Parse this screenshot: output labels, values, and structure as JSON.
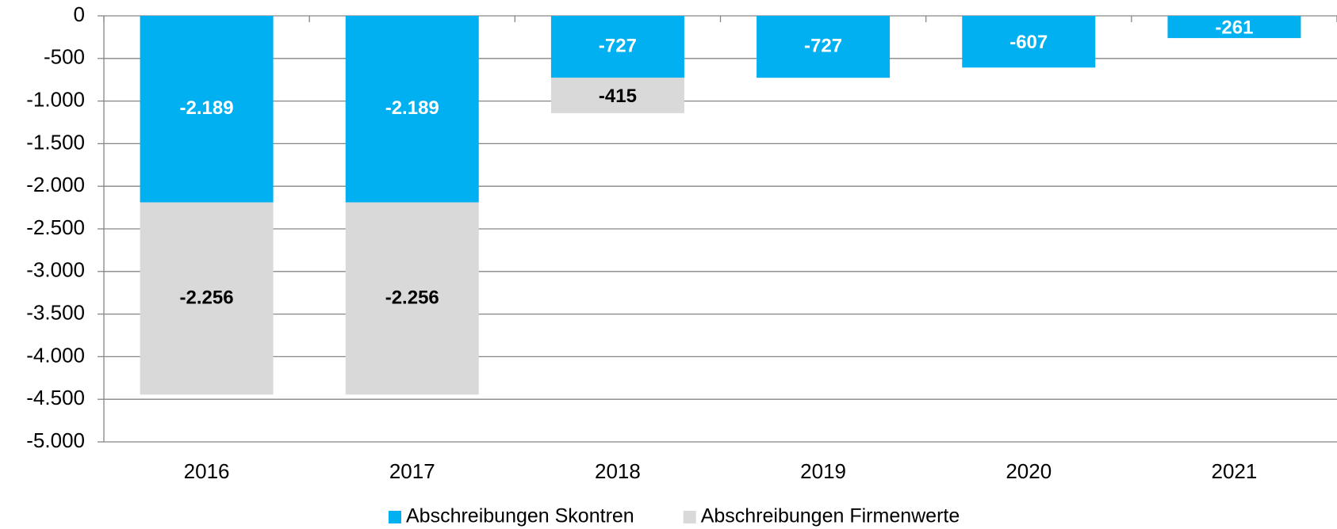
{
  "chart_data": {
    "type": "stacked_bar",
    "categories": [
      "2016",
      "2017",
      "2018",
      "2019",
      "2020",
      "2021"
    ],
    "series": [
      {
        "name": "Abschreibungen Skontren",
        "color": "#00b0f0",
        "label_color": "#ffffff",
        "values": [
          -2189,
          -2189,
          -727,
          -727,
          -607,
          -261
        ],
        "value_labels": [
          "-2.189",
          "-2.189",
          "-727",
          "-727",
          "-607",
          "-261"
        ]
      },
      {
        "name": "Abschreibungen Firmenwerte",
        "color": "#d9d9d9",
        "label_color": "#000000",
        "values": [
          -2256,
          -2256,
          -415,
          null,
          null,
          null
        ],
        "value_labels": [
          "-2.256",
          "-2.256",
          "-415",
          null,
          null,
          null
        ]
      }
    ],
    "ylim": [
      -5000,
      0
    ],
    "yticks": [
      0,
      -500,
      {
        "value": -1000,
        "label": "-1.000"
      },
      {
        "value": -1500,
        "label": "-1.500"
      },
      {
        "value": -2000,
        "label": "-2.000"
      },
      {
        "value": -2500,
        "label": "-2.500"
      },
      {
        "value": -3000,
        "label": "-3.000"
      },
      {
        "value": -3500,
        "label": "-3.500"
      },
      {
        "value": -4000,
        "label": "-4.000"
      },
      {
        "value": -4500,
        "label": "-4.500"
      },
      {
        "value": -5000,
        "label": "-5.000"
      }
    ],
    "grid": true,
    "legend": "bottom"
  }
}
